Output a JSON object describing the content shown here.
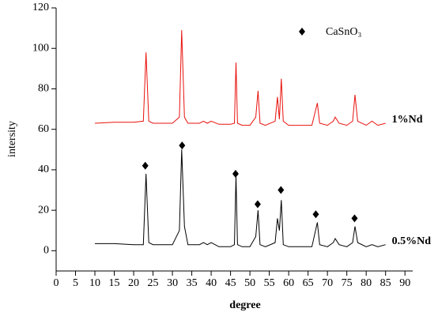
{
  "chart_data": {
    "type": "line",
    "xlabel": "degree",
    "ylabel": "intersity",
    "x": [
      10,
      15,
      20,
      22.5,
      23.2,
      23.9,
      25,
      28,
      30,
      31.8,
      32.4,
      33.1,
      34,
      37,
      38,
      39,
      40,
      42,
      45,
      46,
      46.4,
      46.8,
      48,
      50,
      51.5,
      52.1,
      52.6,
      54,
      56.5,
      57.1,
      57.6,
      58.1,
      58.6,
      60,
      63,
      66,
      67.4,
      68,
      70,
      71.5,
      72,
      73,
      75,
      76.5,
      77.1,
      77.8,
      80,
      81.5,
      83,
      85
    ],
    "series": [
      {
        "name": "1%Nd",
        "color": "#e8120c",
        "values": [
          63,
          63.5,
          63.5,
          64,
          98,
          64,
          63,
          63,
          63,
          66,
          109,
          66,
          63,
          63,
          64,
          63,
          64,
          62.5,
          62.5,
          63,
          93,
          63,
          62,
          62,
          66,
          79,
          63,
          62,
          64,
          76,
          65,
          85,
          64,
          62,
          62,
          62,
          73,
          63,
          62,
          64,
          66,
          63,
          62,
          64,
          77,
          64,
          62,
          64,
          62,
          63
        ]
      },
      {
        "name": "0.5%Nd",
        "color": "#000000",
        "values": [
          3.5,
          3.5,
          3,
          3,
          38,
          4,
          3,
          3,
          3,
          10,
          50,
          12,
          3,
          3,
          4,
          3,
          4,
          2,
          2,
          3,
          37,
          3,
          2,
          2,
          7,
          20,
          3,
          2,
          4,
          16,
          10,
          25,
          3,
          2,
          2,
          2,
          14,
          3,
          2,
          4,
          6,
          3,
          2,
          4,
          12,
          4,
          2,
          3,
          2,
          3
        ]
      }
    ],
    "peak_markers": {
      "name": "CaSnO₃",
      "color": "#000000",
      "x": [
        23,
        32.5,
        46.3,
        52,
        58,
        67,
        77
      ],
      "y": [
        42,
        52,
        38,
        23,
        30,
        18,
        16
      ]
    },
    "xlim": [
      0,
      92
    ],
    "xticks": [
      0,
      5,
      10,
      15,
      20,
      25,
      30,
      35,
      40,
      45,
      50,
      55,
      60,
      65,
      70,
      75,
      80,
      85,
      90
    ],
    "ylim": [
      -10,
      120
    ],
    "yticks": [
      0,
      20,
      40,
      60,
      80,
      100,
      120
    ]
  }
}
